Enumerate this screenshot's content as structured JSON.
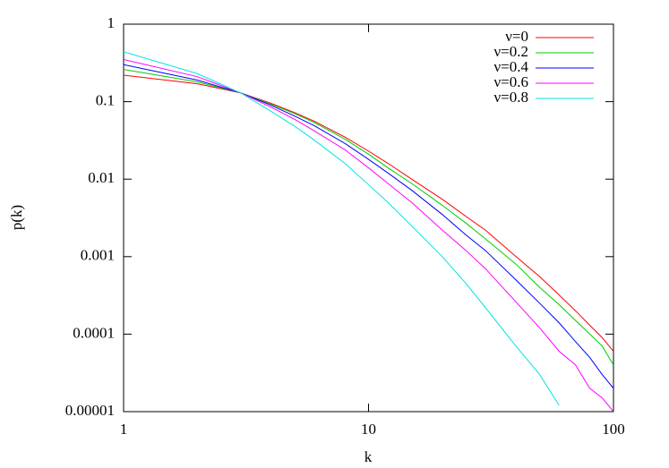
{
  "chart_data": {
    "type": "line",
    "x_label": "k",
    "y_label": "p(k)",
    "x": [
      1,
      2,
      3,
      4,
      5,
      6,
      8,
      10,
      12,
      15,
      20,
      25,
      30,
      40,
      50,
      60,
      70,
      80,
      90,
      100
    ],
    "xlim": [
      1,
      100
    ],
    "xticks": [
      1,
      10,
      100
    ],
    "xscale": "log",
    "ylim": [
      1e-05,
      1
    ],
    "yticks": [
      1,
      0.1,
      0.01,
      0.001,
      0.0001,
      1e-05
    ],
    "yscale": "log",
    "legend": "top-right",
    "series": [
      {
        "name": "ν=0",
        "color": "#ff0000",
        "values": [
          0.22,
          0.17,
          0.13,
          0.095,
          0.072,
          0.056,
          0.035,
          0.023,
          0.016,
          0.01,
          0.0055,
          0.0033,
          0.0022,
          0.001,
          0.00055,
          0.00032,
          0.0002,
          0.00013,
          9e-05,
          6e-05
        ]
      },
      {
        "name": "ν=0.2",
        "color": "#00cc00",
        "values": [
          0.26,
          0.18,
          0.13,
          0.093,
          0.07,
          0.054,
          0.033,
          0.021,
          0.014,
          0.0088,
          0.0046,
          0.0027,
          0.0017,
          0.0008,
          0.0004,
          0.00024,
          0.00015,
          0.0001,
          7e-05,
          4e-05
        ]
      },
      {
        "name": "ν=0.4",
        "color": "#0000ff",
        "values": [
          0.3,
          0.19,
          0.13,
          0.09,
          0.065,
          0.049,
          0.029,
          0.018,
          0.012,
          0.0072,
          0.0035,
          0.0019,
          0.0012,
          0.0005,
          0.00025,
          0.00014,
          8e-05,
          5e-05,
          3e-05,
          2e-05
        ]
      },
      {
        "name": "ν=0.6",
        "color": "#ff00ff",
        "values": [
          0.35,
          0.21,
          0.13,
          0.085,
          0.059,
          0.042,
          0.024,
          0.014,
          0.0088,
          0.005,
          0.0022,
          0.0012,
          0.0007,
          0.00026,
          0.00012,
          6e-05,
          4e-05,
          2e-05,
          1.5e-05,
          1e-05
        ]
      },
      {
        "name": "ν=0.8",
        "color": "#00e5e5",
        "values": [
          0.44,
          0.23,
          0.13,
          0.075,
          0.048,
          0.032,
          0.016,
          0.0085,
          0.005,
          0.0025,
          0.001,
          0.00045,
          0.00022,
          7e-05,
          3e-05,
          1.2e-05,
          null,
          null,
          null,
          null
        ]
      }
    ]
  }
}
